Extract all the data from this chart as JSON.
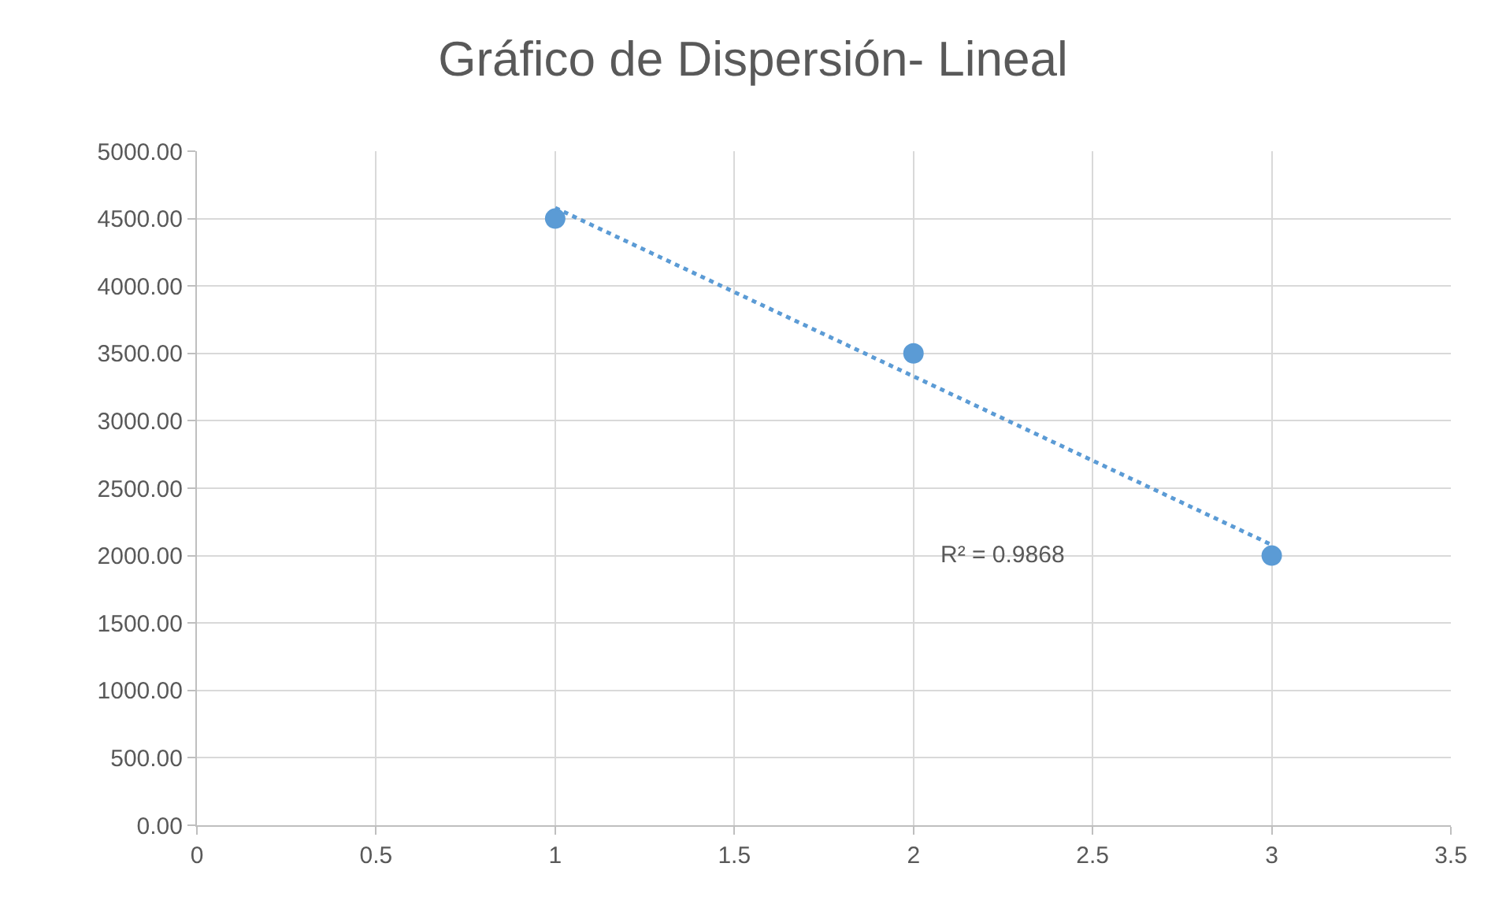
{
  "chart_data": {
    "type": "scatter",
    "title": "Gráfico de Dispersión- Lineal",
    "x": [
      1,
      2,
      3
    ],
    "series": [
      {
        "color": "#5b9bd5",
        "values": [
          4500,
          3500,
          2000
        ],
        "marker": "circle"
      },
      {
        "type": "line",
        "color": "#5b9bd5",
        "x": [
          1,
          3
        ],
        "values": [
          4580,
          2080
        ],
        "line_style": "dotted",
        "marker": "none"
      }
    ],
    "xlim": [
      0,
      3.5
    ],
    "xticks": [
      0,
      0.5,
      1,
      1.5,
      2,
      2.5,
      3,
      3.5
    ],
    "ylim": [
      0,
      5000
    ],
    "yticks": [
      {
        "value": 0,
        "label": "0.00"
      },
      {
        "value": 500,
        "label": "500.00"
      },
      {
        "value": 1000,
        "label": "1000.00"
      },
      {
        "value": 1500,
        "label": "1500.00"
      },
      {
        "value": 2000,
        "label": "2000.00"
      },
      {
        "value": 2500,
        "label": "2500.00"
      },
      {
        "value": 3000,
        "label": "3000.00"
      },
      {
        "value": 3500,
        "label": "3500.00"
      },
      {
        "value": 4000,
        "label": "4000.00"
      },
      {
        "value": 4500,
        "label": "4500.00"
      },
      {
        "value": 5000,
        "label": "5000.00"
      }
    ],
    "grid": true,
    "annotations": [
      "R² = 0.9868"
    ]
  }
}
